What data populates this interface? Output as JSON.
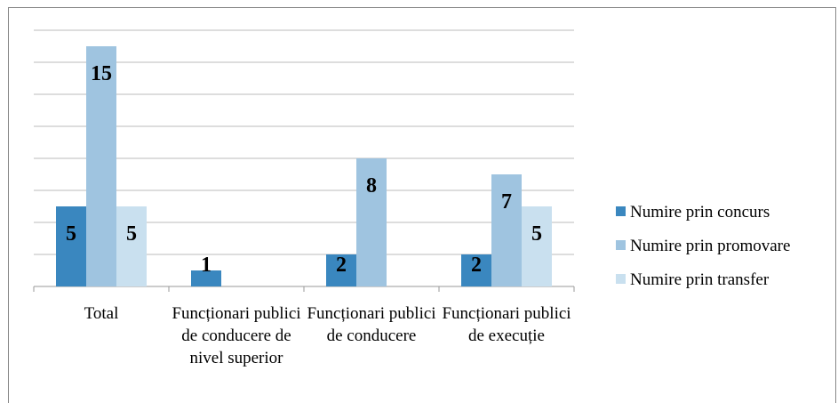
{
  "chart_data": {
    "type": "bar",
    "categories": [
      "Total",
      "Funcționari publici de conducere de nivel superior",
      "Funcționari publici de conducere",
      "Funcționari publici de execuție"
    ],
    "series": [
      {
        "name": "Numire prin concurs",
        "color": "#3a87bf",
        "values": [
          5,
          1,
          2,
          2
        ]
      },
      {
        "name": "Numire prin promovare",
        "color": "#9fc4e0",
        "values": [
          15,
          null,
          8,
          7
        ]
      },
      {
        "name": "Numire prin transfer",
        "color": "#c9e0ef",
        "values": [
          5,
          null,
          null,
          5
        ]
      }
    ],
    "ylim": [
      0,
      16
    ],
    "yticks": [
      0,
      2,
      4,
      6,
      8,
      10,
      12,
      14,
      16
    ],
    "grid": true,
    "legend": "right"
  }
}
